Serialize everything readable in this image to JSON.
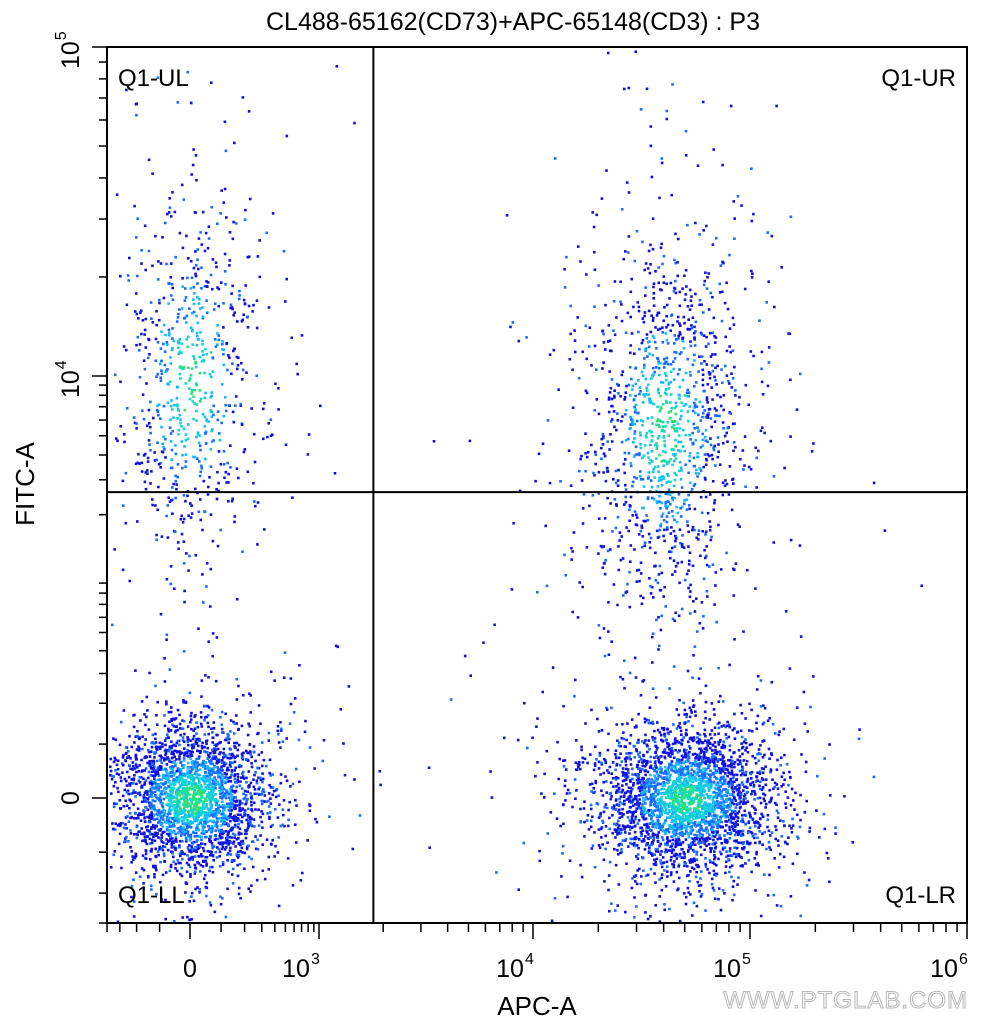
{
  "chart_data": {
    "type": "scatter",
    "title": "CL488-65162(CD73)+APC-65148(CD3) : P3",
    "xlabel": "APC-A",
    "ylabel": "FITC-A",
    "x_scale": "biexponential",
    "y_scale": "biexponential",
    "xlim": [
      -400,
      1000000
    ],
    "ylim": [
      -300,
      100000
    ],
    "x_tick_labels": [
      {
        "value": 0,
        "base": "0",
        "exp": ""
      },
      {
        "value": 1000,
        "base": "10",
        "exp": "3"
      },
      {
        "value": 10000,
        "base": "10",
        "exp": "4"
      },
      {
        "value": 100000,
        "base": "10",
        "exp": "5"
      },
      {
        "value": 1000000,
        "base": "10",
        "exp": "6"
      }
    ],
    "y_tick_labels": [
      {
        "value": 0,
        "base": "0",
        "exp": ""
      },
      {
        "value": 10000,
        "base": "10",
        "exp": "4"
      },
      {
        "value": 100000,
        "base": "10",
        "exp": "5"
      }
    ],
    "gates": {
      "x": 1800,
      "y": 2600
    },
    "quadrants": [
      {
        "name": "Q1-UL",
        "position": "top-left"
      },
      {
        "name": "Q1-UR",
        "position": "top-right"
      },
      {
        "name": "Q1-LL",
        "position": "bottom-left"
      },
      {
        "name": "Q1-LR",
        "position": "bottom-right"
      }
    ],
    "populations": [
      {
        "id": "lower-left",
        "center_x": 0,
        "center_y": 0,
        "count": 2600
      },
      {
        "id": "upper-left",
        "center_x": 0,
        "center_y": 9500,
        "count": 750
      },
      {
        "id": "lower-right",
        "center_x": 50000,
        "center_y": 0,
        "count": 3000
      },
      {
        "id": "upper-right",
        "center_x": 40000,
        "center_y": 5500,
        "count": 1300
      }
    ],
    "density_colors": [
      "#1010e0",
      "#1a6aff",
      "#18b8ff",
      "#12d8c8",
      "#30e070"
    ]
  },
  "watermark": "WWW.PTGLAB.COM"
}
